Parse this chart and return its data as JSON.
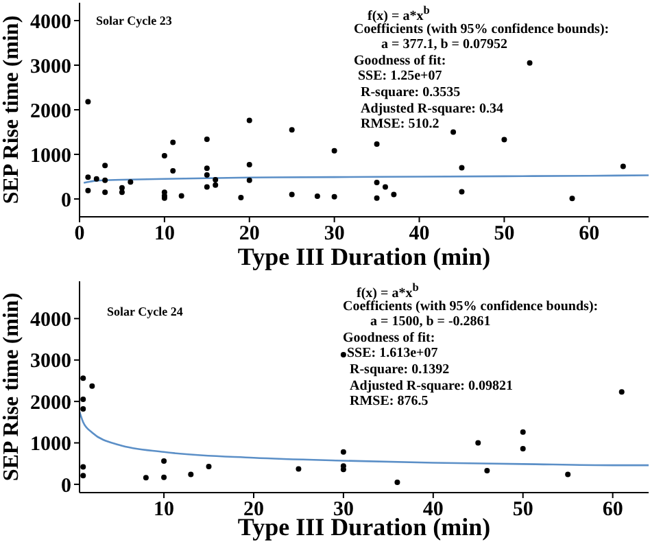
{
  "chart_data": [
    {
      "type": "scatter",
      "xlabel": "Type III Duration (min)",
      "ylabel": "SEP Rise time (min)",
      "xlim": [
        0,
        67
      ],
      "xticks": [
        0,
        10,
        20,
        30,
        40,
        50,
        60
      ],
      "ylim": [
        -400,
        4400
      ],
      "yticks": [
        0,
        1000,
        2000,
        3000,
        4000
      ],
      "annotations": [
        "Solar Cycle 23",
        "f(x) = a*x$^{b}$",
        "Coefficients (with 95% confidence bounds):",
        "a = 377.1, b = 0.07952",
        "Goodness of fit:",
        "SSE: 1.25e+07",
        "R-square: 0.3535",
        "Adjusted R-square: 0.34",
        "RMSE: 510.2"
      ],
      "series": [
        {
          "color": "#000000",
          "marker": "circle",
          "x": [
            1,
            1,
            1,
            2,
            3,
            3,
            3,
            5,
            5,
            6,
            10,
            10,
            10,
            10,
            11,
            11,
            12,
            15,
            15,
            15,
            15,
            16,
            16,
            19,
            20,
            20,
            20,
            25,
            25,
            28,
            30,
            30,
            35,
            35,
            35,
            36,
            37,
            44,
            45,
            45,
            50,
            53,
            58,
            64
          ],
          "values": [
            2180,
            490,
            190,
            450,
            750,
            420,
            150,
            250,
            150,
            380,
            970,
            150,
            70,
            20,
            1270,
            630,
            70,
            1340,
            690,
            540,
            270,
            430,
            310,
            30,
            1760,
            770,
            420,
            1550,
            100,
            60,
            1080,
            50,
            1230,
            370,
            20,
            270,
            100,
            1500,
            700,
            160,
            1330,
            3050,
            10,
            730
          ]
        },
        {
          "type": "line",
          "color": "#5b8fc7",
          "marker": "none",
          "x": [
            0.5,
            1,
            2,
            5,
            10,
            20,
            30,
            40,
            50,
            60,
            67
          ],
          "values": [
            360,
            380,
            410,
            430,
            450,
            480,
            490,
            500,
            510,
            520,
            530
          ]
        }
      ]
    },
    {
      "type": "scatter",
      "xlabel": "Type III Duration (min)",
      "ylabel": "SEP Rise time (min)",
      "xlim": [
        0.6,
        64
      ],
      "xticks": [
        10,
        20,
        30,
        40,
        50,
        60
      ],
      "ylim": [
        -200,
        4900
      ],
      "yticks": [
        0,
        1000,
        2000,
        3000,
        4000
      ],
      "annotations": [
        "Solar Cycle 24",
        "f(x) = a*x$^{b}$",
        "Coefficients (with 95% confidence bounds):",
        "a = 1500,   b = -0.2861",
        "Goodness of fit:",
        "SSE: 1.613e+07",
        "R-square: 0.1392",
        "Adjusted R-square: 0.09821",
        "RMSE: 876.5"
      ],
      "series": [
        {
          "color": "#000000",
          "marker": "circle",
          "x": [
            1,
            1,
            1,
            1,
            1,
            2,
            8,
            10,
            10,
            13,
            15,
            25,
            30,
            30,
            30,
            30,
            36,
            45,
            46,
            50,
            50,
            55,
            61
          ],
          "values": [
            2560,
            2050,
            1820,
            420,
            210,
            2370,
            160,
            560,
            170,
            240,
            430,
            370,
            780,
            440,
            360,
            3130,
            50,
            1000,
            330,
            1260,
            860,
            240,
            2230
          ]
        },
        {
          "type": "line",
          "color": "#5b8fc7",
          "marker": "none",
          "x": [
            0.6,
            1,
            2,
            5,
            10,
            20,
            30,
            40,
            50,
            60,
            64
          ],
          "values": [
            1750,
            1500,
            1250,
            950,
            780,
            640,
            570,
            520,
            490,
            460,
            460
          ]
        }
      ]
    }
  ]
}
